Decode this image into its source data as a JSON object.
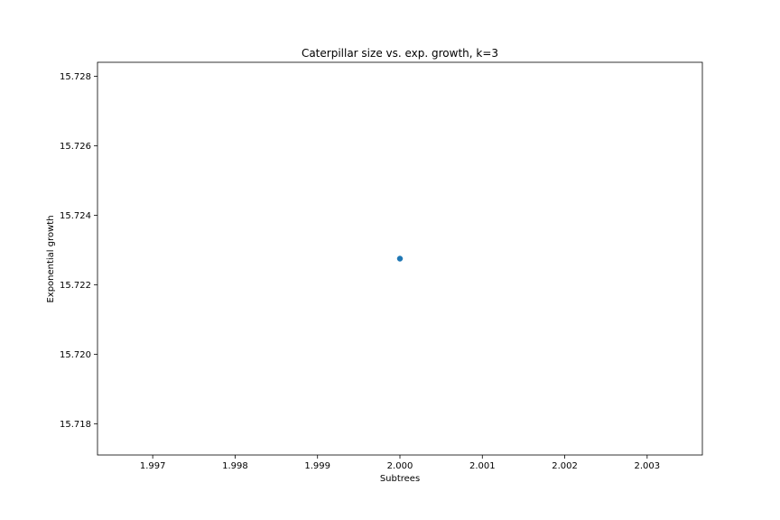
{
  "chart_data": {
    "type": "scatter",
    "title": "Caterpillar size vs. exp. growth, k=3",
    "xlabel": "Subtrees",
    "ylabel": "Exponential growth",
    "xlim": [
      1.99633,
      2.00367
    ],
    "ylim": [
      15.7171,
      15.7284
    ],
    "xticks": [
      "1.997",
      "1.998",
      "1.999",
      "2.000",
      "2.001",
      "2.002",
      "2.003"
    ],
    "yticks": [
      "15.718",
      "15.720",
      "15.722",
      "15.724",
      "15.726",
      "15.728"
    ],
    "grid": false,
    "series": [
      {
        "color": "#1f77b4",
        "points": [
          {
            "x": 2.0,
            "y": 15.72275
          }
        ]
      }
    ]
  }
}
